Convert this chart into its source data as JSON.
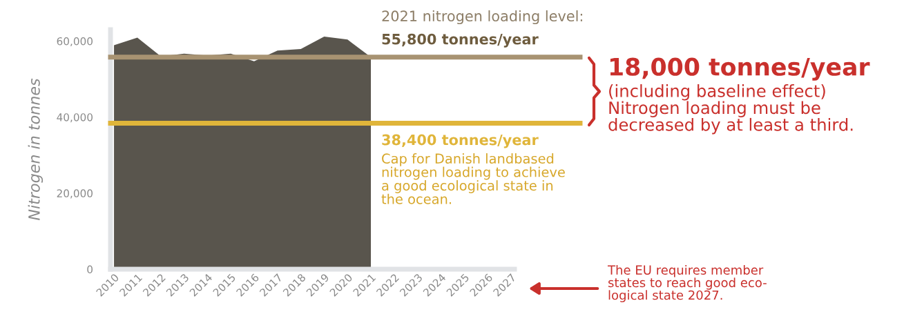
{
  "chart_data": {
    "type": "area",
    "ylabel": "Nitrogen in tonnes",
    "categories": [
      "2010",
      "2011",
      "2012",
      "2013",
      "2014",
      "2015",
      "2016",
      "2017",
      "2018",
      "2019",
      "2020",
      "2021",
      "2022",
      "2023",
      "2024",
      "2025",
      "2026",
      "2027"
    ],
    "series": [
      {
        "color": "#59554d",
        "values": [
          58900,
          60900,
          56000,
          56700,
          56200,
          56700,
          54700,
          57500,
          57900,
          61200,
          60400,
          55800,
          null,
          null,
          null,
          null,
          null,
          null
        ]
      }
    ],
    "ylim": [
      0,
      63000
    ],
    "yticks": [
      0,
      {
        "value": 20000,
        "label": "20,000"
      },
      {
        "value": 40000,
        "label": "40,000"
      },
      {
        "value": 60000,
        "label": "60,000"
      }
    ],
    "ref_lines": [
      {
        "axis": "y",
        "value": 55800,
        "label": "55,800 tonnes/year",
        "color": "#a89372"
      },
      {
        "axis": "y",
        "value": 38400,
        "label": "38,400 tonnes/year",
        "color": "#e0b53a"
      }
    ],
    "annotations": [
      "2021 nitrogen loading level:",
      "Cap for Danish landbased\nnitrogen loading to achieve\na good ecological state in\nthe ocean.",
      "18,000 tonnes/year",
      "(including baseline effect)\nNitrogen loading must be\ndecreased by at least a third.",
      "The EU requires member\nstates to reach good eco-\nlogical state 2027."
    ],
    "grid": false,
    "legend": false
  }
}
